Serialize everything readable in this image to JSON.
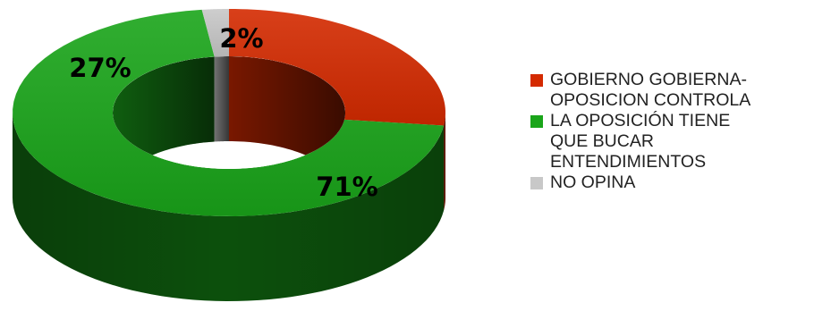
{
  "chart_data": {
    "type": "pie",
    "variant": "3d-doughnut",
    "title": "",
    "categories": [
      "GOBIERNO GOBIERNA-OPOSICION CONTROLA",
      "LA OPOSICIÓN TIENE QUE BUCAR ENTENDIMIENTOS",
      "NO OPINA"
    ],
    "values": [
      27,
      71,
      2
    ],
    "labels": [
      "27%",
      "71%",
      "2%"
    ],
    "colors": [
      "#d42a00",
      "#1aa51a",
      "#c8c8c8"
    ],
    "legend_position": "right"
  },
  "legend": {
    "items": [
      {
        "label_lines": [
          "GOBIERNO GOBIERNA-",
          "OPOSICION CONTROLA"
        ],
        "color": "#d42a00"
      },
      {
        "label_lines": [
          "LA OPOSICIÓN TIENE",
          "QUE BUCAR",
          "ENTENDIMIENTOS"
        ],
        "color": "#1aa51a"
      },
      {
        "label_lines": [
          "NO OPINA"
        ],
        "color": "#c8c8c8"
      }
    ]
  }
}
